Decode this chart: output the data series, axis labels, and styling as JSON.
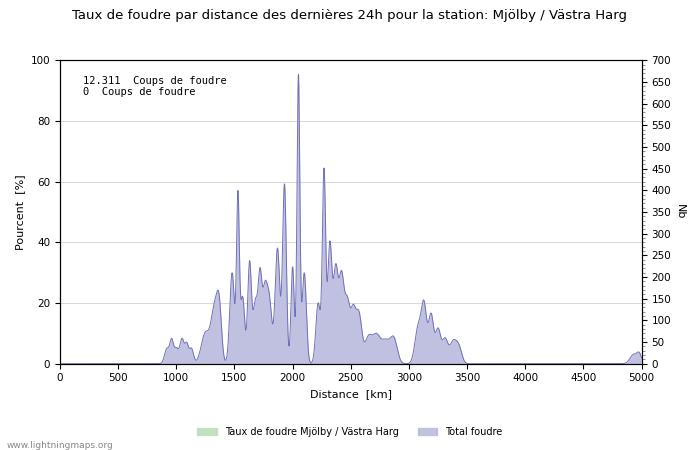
{
  "title": "Taux de foudre par distance des dernières 24h pour la station: Mjölby / Västra Harg",
  "xlabel": "Distance  [km]",
  "ylabel_left": "Pourcent  [%]",
  "ylabel_right": "Nb",
  "annotation_line1": "12.311  Coups de foudre",
  "annotation_line2": "0  Coups de foudre",
  "legend_label1": "Taux de foudre Mjölby / Västra Harg",
  "legend_label2": "Total foudre",
  "watermark": "www.lightningmaps.org",
  "xlim": [
    0,
    5000
  ],
  "ylim_left": [
    0,
    100
  ],
  "ylim_right": [
    0,
    700
  ],
  "xticks": [
    0,
    500,
    1000,
    1500,
    2000,
    2500,
    3000,
    3500,
    4000,
    4500,
    5000
  ],
  "yticks_left": [
    0,
    20,
    40,
    60,
    80,
    100
  ],
  "yticks_right": [
    0,
    50,
    100,
    150,
    200,
    250,
    300,
    350,
    400,
    450,
    500,
    550,
    600,
    650,
    700
  ],
  "line_color": "#7070b8",
  "fill_color_total": "#c0c0e0",
  "fill_color_local": "#c0e0c0",
  "background_color": "#ffffff",
  "grid_color": "#c8c8c8",
  "title_fontsize": 9.5,
  "axis_fontsize": 8,
  "tick_fontsize": 7.5
}
